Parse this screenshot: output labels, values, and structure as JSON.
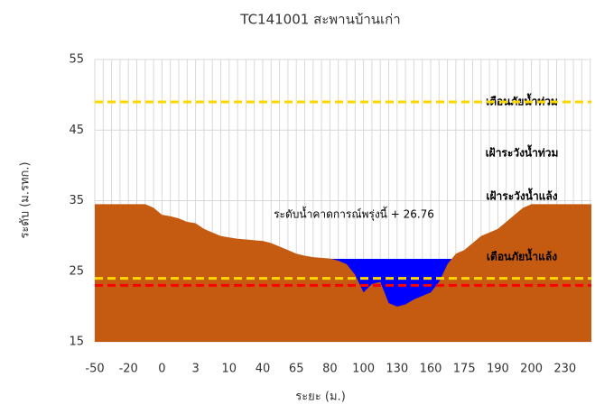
{
  "chart_data": {
    "type": "cross-section",
    "title": "TC141001 สะพานบ้านเก่า",
    "x_label": "ระยะ (ม.)",
    "y_label": "ระดับ (ม.รทก.)",
    "categories": [
      -50,
      null,
      null,
      null,
      -20,
      null,
      null,
      null,
      0,
      null,
      null,
      null,
      3,
      null,
      null,
      null,
      10,
      null,
      null,
      null,
      40,
      null,
      null,
      null,
      65,
      null,
      null,
      null,
      80,
      null,
      null,
      null,
      100,
      null,
      null,
      null,
      130,
      null,
      null,
      null,
      160,
      null,
      null,
      null,
      175,
      null,
      null,
      null,
      190,
      null,
      null,
      null,
      200,
      null,
      null,
      null,
      230,
      null,
      null,
      null
    ],
    "ground": {
      "color": "#c55a11",
      "values": [
        34.5,
        34.5,
        34.5,
        34.5,
        34.5,
        34.5,
        34.5,
        34,
        33,
        32.8,
        32.5,
        32,
        31.8,
        31,
        30.5,
        30,
        29.8,
        29.6,
        29.5,
        29.4,
        29.3,
        29,
        28.5,
        28,
        27.5,
        27.2,
        27,
        26.9,
        26.8,
        26.5,
        26,
        24.5,
        22,
        23.2,
        23.5,
        20.5,
        20,
        20.3,
        21,
        21.5,
        22,
        23.5,
        26,
        27.5,
        28,
        29,
        30,
        30.5,
        31,
        32,
        33,
        34,
        34.5,
        34.5,
        34.5,
        34.5,
        34.5,
        34.5,
        34.5,
        34.5
      ]
    },
    "water": {
      "color": "#0000ff",
      "level": 26.76,
      "label": "ระดับน้ำคาดการณ์พรุ่งนี้ + 26.76"
    },
    "thresholds": [
      {
        "name": "เตือนภัยน้ำท่วม",
        "value": 49,
        "color": "#ff0000"
      },
      {
        "name": "เฝ้าระวังน้ำท่วม",
        "value": 49,
        "color": "#ffd700"
      },
      {
        "name": "เฝ้าระวังน้ำแล้ง",
        "value": 24,
        "color": "#ffd700"
      },
      {
        "name": "เตือนภัยน้ำแล้ง",
        "value": 23,
        "color": "#ff0000"
      }
    ],
    "ylim": [
      15,
      55
    ],
    "yticks": [
      15,
      25,
      35,
      45,
      55
    ],
    "grid": true
  }
}
